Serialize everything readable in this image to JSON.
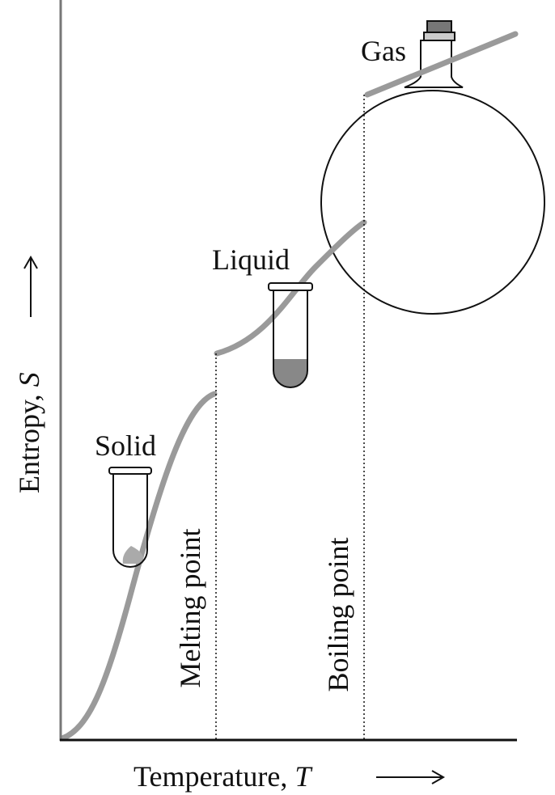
{
  "axes": {
    "y": {
      "label": "Entropy, ",
      "variable": "S"
    },
    "x": {
      "label": "Temperature, ",
      "variable": "T"
    }
  },
  "phases": {
    "solid": "Solid",
    "liquid": "Liquid",
    "gas": "Gas"
  },
  "transitions": {
    "melting": "Melting point",
    "boiling": "Boiling point"
  }
}
